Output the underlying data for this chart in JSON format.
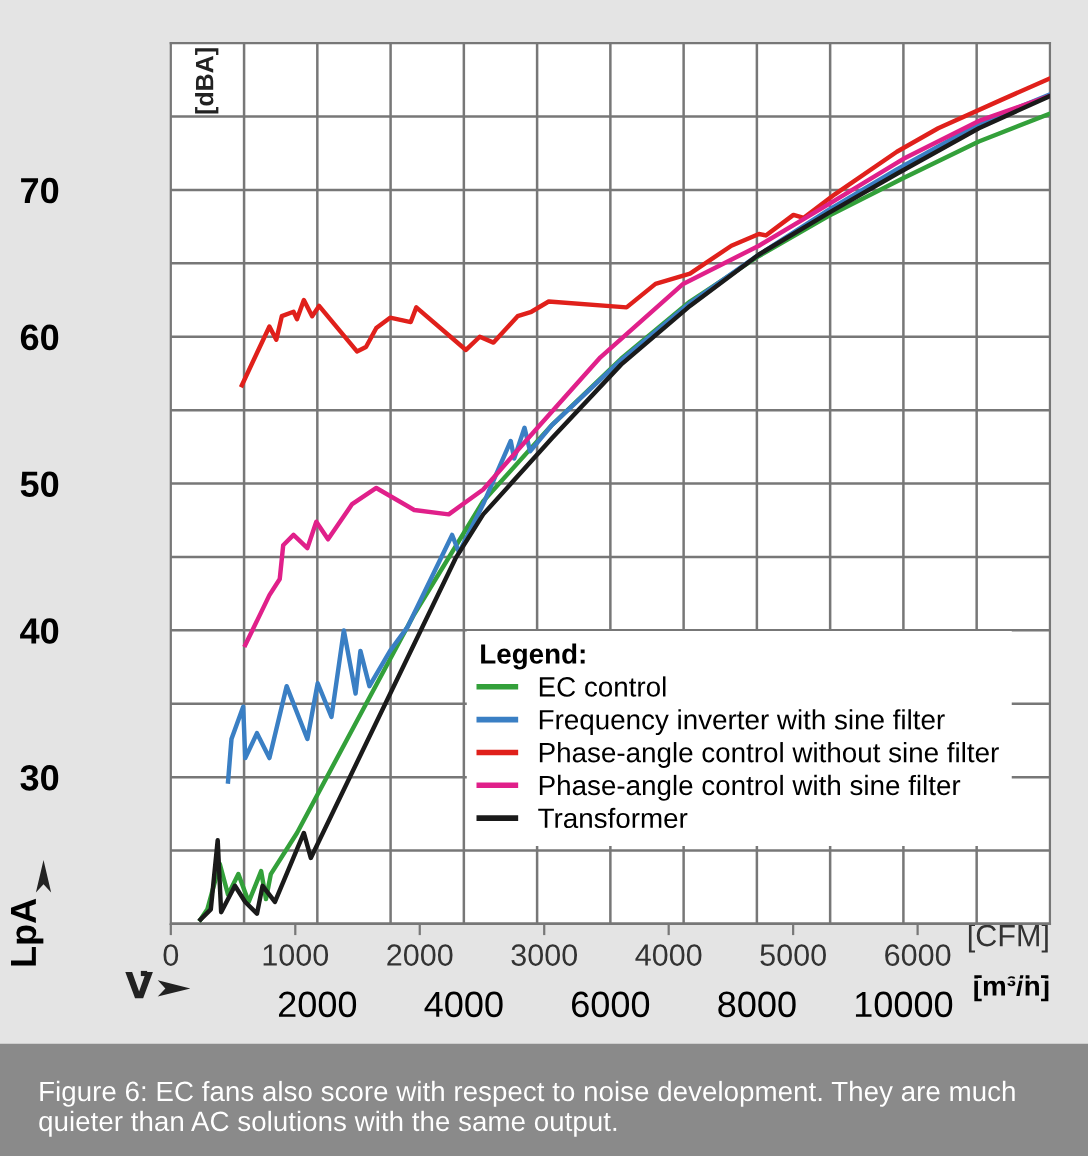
{
  "chart_data": {
    "type": "line",
    "xlabel": "[m³/h]",
    "x2label": "[CFM]",
    "ylabel": "LpA",
    "legend_title": "Legend:",
    "annotations": [
      "[dBA]",
      "V̇",
      "Figure 6: EC fans also score with respect to noise development. They are much quieter than AC solutions with the same output."
    ],
    "xlim": [
      0,
      12000
    ],
    "xticks": [
      {
        "value": 1000,
        "label": null
      },
      2000,
      {
        "value": 3000,
        "label": null
      },
      4000,
      {
        "value": 5000,
        "label": null
      },
      6000,
      {
        "value": 7000,
        "label": null
      },
      8000,
      {
        "value": 9000,
        "label": null
      },
      10000,
      {
        "value": 11000,
        "label": null
      }
    ],
    "x2lim": [
      0,
      7063
    ],
    "x2ticks": [
      0,
      1000,
      2000,
      3000,
      4000,
      5000,
      6000
    ],
    "ylim": [
      20,
      80
    ],
    "yticks": [
      {
        "value": 25,
        "label": null
      },
      30,
      {
        "value": 35,
        "label": null
      },
      40,
      {
        "value": 45,
        "label": null
      },
      50,
      {
        "value": 55,
        "label": null
      },
      60,
      {
        "value": 65,
        "label": null
      },
      70,
      {
        "value": 75,
        "label": null
      }
    ],
    "grid": true,
    "legend": "bottom right",
    "marker": "none",
    "line_style": "solid",
    "series": [
      {
        "name": "EC control",
        "color": "#33a03a",
        "x": [
          405,
          499,
          668,
          781,
          922,
          1063,
          1233,
          1299,
          1365,
          1722,
          2569,
          3322,
          4264,
          5205,
          6146,
          7087,
          8028,
          8969,
          9995,
          11030,
          12000
        ],
        "values": [
          20.3,
          21.0,
          24.1,
          22.0,
          23.4,
          21.5,
          23.6,
          21.7,
          23.4,
          26.2,
          34.1,
          41.1,
          48.8,
          54.0,
          58.5,
          62.4,
          65.5,
          68.2,
          70.8,
          73.3,
          75.2
        ]
      },
      {
        "name": "Frequency inverter with sine filter",
        "color": "#3a7fc4",
        "x": [
          781,
          828,
          988,
          1016,
          1176,
          1346,
          1581,
          1864,
          2005,
          2193,
          2362,
          2522,
          2588,
          2711,
          2993,
          3228,
          3840,
          3934,
          4264,
          4640,
          4687,
          4828,
          4904,
          5205,
          6146,
          7087,
          8028,
          8969,
          9911,
          11030,
          12000
        ],
        "values": [
          29.7,
          32.6,
          34.8,
          31.3,
          33.0,
          31.3,
          36.2,
          32.6,
          36.4,
          34.1,
          40.0,
          35.7,
          38.6,
          36.2,
          38.6,
          40.2,
          46.5,
          45.3,
          48.6,
          52.9,
          51.7,
          53.8,
          52.2,
          54.0,
          58.4,
          62.3,
          65.6,
          68.6,
          71.4,
          74.5,
          76.5
        ]
      },
      {
        "name": "Phase-angle control without sine filter",
        "color": "#e0201b",
        "x": [
          970,
          1346,
          1440,
          1515,
          1675,
          1722,
          1816,
          1929,
          2024,
          2541,
          2664,
          2805,
          2993,
          3275,
          3351,
          4029,
          4217,
          4405,
          4734,
          4922,
          5158,
          6221,
          6616,
          7087,
          7652,
          8028,
          8122,
          8499,
          8640,
          9064,
          9911,
          10475,
          11322,
          12000
        ],
        "values": [
          56.7,
          60.7,
          59.8,
          61.4,
          61.7,
          61.2,
          62.5,
          61.4,
          62.1,
          59.0,
          59.3,
          60.6,
          61.3,
          61.0,
          62.0,
          59.1,
          60.0,
          59.6,
          61.4,
          61.7,
          62.4,
          62.0,
          63.6,
          64.3,
          66.2,
          67.0,
          66.9,
          68.3,
          68.1,
          69.7,
          72.6,
          74.2,
          76.1,
          77.6
        ]
      },
      {
        "name": "Phase-angle control with sine filter",
        "color": "#e0208a",
        "x": [
          1016,
          1346,
          1487,
          1534,
          1675,
          1864,
          1986,
          2146,
          2475,
          2805,
          3322,
          3793,
          4264,
          4969,
          5864,
          6993,
          8028,
          8969,
          9995,
          11030,
          12000
        ],
        "values": [
          39.0,
          42.4,
          43.5,
          45.8,
          46.5,
          45.6,
          47.4,
          46.2,
          48.6,
          49.7,
          48.2,
          47.9,
          49.6,
          53.6,
          58.6,
          63.6,
          66.2,
          69.0,
          72.1,
          74.7,
          76.4
        ]
      },
      {
        "name": "Transformer",
        "color": "#1a1a1a",
        "x": [
          405,
          546,
          640,
          687,
          875,
          1016,
          1176,
          1252,
          1421,
          1816,
          1911,
          3886,
          4264,
          5205,
          6146,
          7087,
          8028,
          8969,
          9911,
          11030,
          12000
        ],
        "values": [
          20.3,
          21.0,
          25.7,
          20.8,
          22.6,
          21.5,
          20.7,
          22.6,
          21.5,
          26.2,
          24.5,
          44.9,
          47.9,
          53.1,
          58.1,
          62.1,
          65.6,
          68.4,
          71.1,
          74.2,
          76.4
        ]
      }
    ]
  }
}
